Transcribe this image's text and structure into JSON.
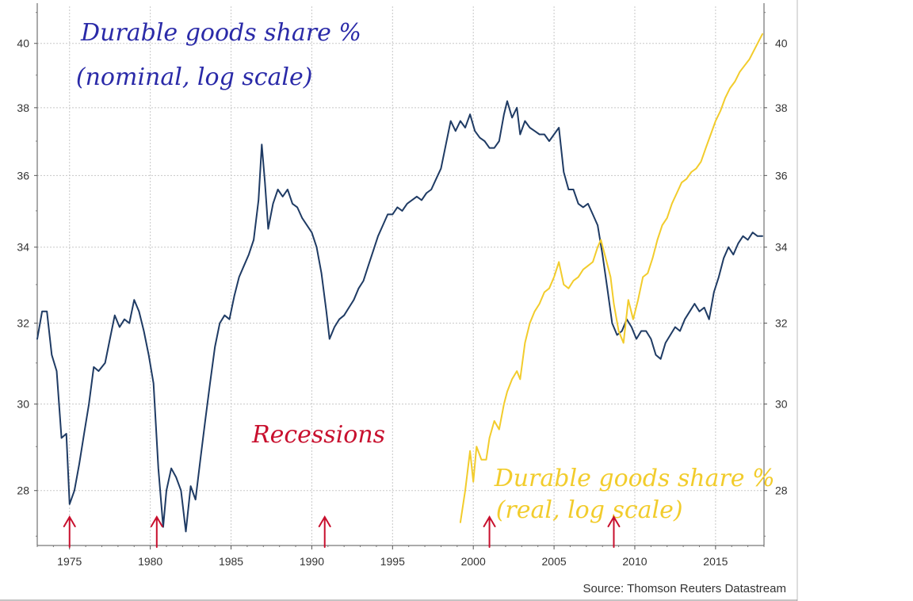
{
  "chart_data": {
    "type": "line",
    "title": "",
    "xlabel": "",
    "ylabel": "",
    "scale": "log",
    "grid": true,
    "legend": "none",
    "xlim": [
      1973,
      2018
    ],
    "ylim": [
      26.8,
      41.2
    ],
    "x_ticks": [
      1975,
      1980,
      1985,
      1990,
      1995,
      2000,
      2005,
      2010,
      2015
    ],
    "x_tick_labels": [
      "1975",
      "1980",
      "1985",
      "1990",
      "1995",
      "2000",
      "2005",
      "2010",
      "2015"
    ],
    "y_ticks": [
      28,
      30,
      32,
      34,
      36,
      38,
      40
    ],
    "y_tick_labels": [
      "28",
      "30",
      "32",
      "34",
      "36",
      "38",
      "40"
    ],
    "source": "Source: Thomson Reuters Datastream",
    "series": [
      {
        "color": "#1f3b64",
        "points": [
          [
            1973.0,
            31.6
          ],
          [
            1973.3,
            32.3
          ],
          [
            1973.6,
            32.3
          ],
          [
            1973.9,
            31.2
          ],
          [
            1974.2,
            30.8
          ],
          [
            1974.5,
            29.2
          ],
          [
            1974.8,
            29.3
          ],
          [
            1975.0,
            27.7
          ],
          [
            1975.3,
            28.0
          ],
          [
            1975.6,
            28.6
          ],
          [
            1975.9,
            29.3
          ],
          [
            1976.2,
            30.0
          ],
          [
            1976.5,
            30.9
          ],
          [
            1976.8,
            30.8
          ],
          [
            1977.2,
            31.0
          ],
          [
            1977.5,
            31.6
          ],
          [
            1977.8,
            32.2
          ],
          [
            1978.1,
            31.9
          ],
          [
            1978.4,
            32.1
          ],
          [
            1978.7,
            32.0
          ],
          [
            1979.0,
            32.6
          ],
          [
            1979.3,
            32.3
          ],
          [
            1979.6,
            31.8
          ],
          [
            1979.9,
            31.2
          ],
          [
            1980.2,
            30.5
          ],
          [
            1980.5,
            28.5
          ],
          [
            1980.8,
            27.2
          ],
          [
            1981.0,
            28.0
          ],
          [
            1981.3,
            28.5
          ],
          [
            1981.6,
            28.3
          ],
          [
            1981.9,
            28.0
          ],
          [
            1982.2,
            27.1
          ],
          [
            1982.5,
            28.1
          ],
          [
            1982.8,
            27.8
          ],
          [
            1983.1,
            28.7
          ],
          [
            1983.4,
            29.6
          ],
          [
            1983.7,
            30.5
          ],
          [
            1984.0,
            31.4
          ],
          [
            1984.3,
            32.0
          ],
          [
            1984.6,
            32.2
          ],
          [
            1984.9,
            32.1
          ],
          [
            1985.2,
            32.7
          ],
          [
            1985.5,
            33.2
          ],
          [
            1985.8,
            33.5
          ],
          [
            1986.1,
            33.8
          ],
          [
            1986.4,
            34.2
          ],
          [
            1986.7,
            35.3
          ],
          [
            1986.9,
            36.9
          ],
          [
            1987.1,
            35.8
          ],
          [
            1987.3,
            34.5
          ],
          [
            1987.6,
            35.2
          ],
          [
            1987.9,
            35.6
          ],
          [
            1988.2,
            35.4
          ],
          [
            1988.5,
            35.6
          ],
          [
            1988.8,
            35.2
          ],
          [
            1989.1,
            35.1
          ],
          [
            1989.4,
            34.8
          ],
          [
            1989.7,
            34.6
          ],
          [
            1990.0,
            34.4
          ],
          [
            1990.3,
            34.0
          ],
          [
            1990.6,
            33.3
          ],
          [
            1990.9,
            32.3
          ],
          [
            1991.1,
            31.6
          ],
          [
            1991.4,
            31.9
          ],
          [
            1991.7,
            32.1
          ],
          [
            1992.0,
            32.2
          ],
          [
            1992.3,
            32.4
          ],
          [
            1992.6,
            32.6
          ],
          [
            1992.9,
            32.9
          ],
          [
            1993.2,
            33.1
          ],
          [
            1993.5,
            33.5
          ],
          [
            1993.8,
            33.9
          ],
          [
            1994.1,
            34.3
          ],
          [
            1994.4,
            34.6
          ],
          [
            1994.7,
            34.9
          ],
          [
            1995.0,
            34.9
          ],
          [
            1995.3,
            35.1
          ],
          [
            1995.6,
            35.0
          ],
          [
            1995.9,
            35.2
          ],
          [
            1996.2,
            35.3
          ],
          [
            1996.5,
            35.4
          ],
          [
            1996.8,
            35.3
          ],
          [
            1997.1,
            35.5
          ],
          [
            1997.4,
            35.6
          ],
          [
            1997.7,
            35.9
          ],
          [
            1998.0,
            36.2
          ],
          [
            1998.3,
            36.9
          ],
          [
            1998.6,
            37.6
          ],
          [
            1998.9,
            37.3
          ],
          [
            1999.2,
            37.6
          ],
          [
            1999.5,
            37.4
          ],
          [
            1999.8,
            37.8
          ],
          [
            2000.1,
            37.3
          ],
          [
            2000.4,
            37.1
          ],
          [
            2000.7,
            37.0
          ],
          [
            2001.0,
            36.8
          ],
          [
            2001.3,
            36.8
          ],
          [
            2001.6,
            37.0
          ],
          [
            2001.9,
            37.8
          ],
          [
            2002.1,
            38.2
          ],
          [
            2002.4,
            37.7
          ],
          [
            2002.7,
            38.0
          ],
          [
            2002.9,
            37.2
          ],
          [
            2003.2,
            37.6
          ],
          [
            2003.5,
            37.4
          ],
          [
            2003.8,
            37.3
          ],
          [
            2004.1,
            37.2
          ],
          [
            2004.4,
            37.2
          ],
          [
            2004.7,
            37.0
          ],
          [
            2005.0,
            37.2
          ],
          [
            2005.3,
            37.4
          ],
          [
            2005.6,
            36.1
          ],
          [
            2005.9,
            35.6
          ],
          [
            2006.2,
            35.6
          ],
          [
            2006.5,
            35.2
          ],
          [
            2006.8,
            35.1
          ],
          [
            2007.1,
            35.2
          ],
          [
            2007.4,
            34.9
          ],
          [
            2007.7,
            34.6
          ],
          [
            2008.0,
            33.8
          ],
          [
            2008.3,
            32.9
          ],
          [
            2008.6,
            32.0
          ],
          [
            2008.9,
            31.7
          ],
          [
            2009.2,
            31.8
          ],
          [
            2009.5,
            32.1
          ],
          [
            2009.8,
            31.9
          ],
          [
            2010.1,
            31.6
          ],
          [
            2010.4,
            31.8
          ],
          [
            2010.7,
            31.8
          ],
          [
            2011.0,
            31.6
          ],
          [
            2011.3,
            31.2
          ],
          [
            2011.6,
            31.1
          ],
          [
            2011.9,
            31.5
          ],
          [
            2012.2,
            31.7
          ],
          [
            2012.5,
            31.9
          ],
          [
            2012.8,
            31.8
          ],
          [
            2013.1,
            32.1
          ],
          [
            2013.4,
            32.3
          ],
          [
            2013.7,
            32.5
          ],
          [
            2014.0,
            32.3
          ],
          [
            2014.3,
            32.4
          ],
          [
            2014.6,
            32.1
          ],
          [
            2014.9,
            32.8
          ],
          [
            2015.2,
            33.2
          ],
          [
            2015.5,
            33.7
          ],
          [
            2015.8,
            34.0
          ],
          [
            2016.1,
            33.8
          ],
          [
            2016.4,
            34.1
          ],
          [
            2016.7,
            34.3
          ],
          [
            2017.0,
            34.2
          ],
          [
            2017.3,
            34.4
          ],
          [
            2017.6,
            34.3
          ],
          [
            2017.9,
            34.3
          ]
        ]
      },
      {
        "color": "#f2cc2c",
        "points": [
          [
            1999.2,
            27.3
          ],
          [
            1999.5,
            28.0
          ],
          [
            1999.8,
            28.9
          ],
          [
            2000.0,
            28.2
          ],
          [
            2000.2,
            29.0
          ],
          [
            2000.5,
            28.7
          ],
          [
            2000.8,
            28.7
          ],
          [
            2001.0,
            29.2
          ],
          [
            2001.3,
            29.6
          ],
          [
            2001.6,
            29.4
          ],
          [
            2001.9,
            30.0
          ],
          [
            2002.1,
            30.3
          ],
          [
            2002.4,
            30.6
          ],
          [
            2002.7,
            30.8
          ],
          [
            2002.9,
            30.6
          ],
          [
            2003.2,
            31.5
          ],
          [
            2003.5,
            32.0
          ],
          [
            2003.8,
            32.3
          ],
          [
            2004.1,
            32.5
          ],
          [
            2004.4,
            32.8
          ],
          [
            2004.7,
            32.9
          ],
          [
            2005.0,
            33.2
          ],
          [
            2005.3,
            33.6
          ],
          [
            2005.6,
            33.0
          ],
          [
            2005.9,
            32.9
          ],
          [
            2006.2,
            33.1
          ],
          [
            2006.5,
            33.2
          ],
          [
            2006.8,
            33.4
          ],
          [
            2007.1,
            33.5
          ],
          [
            2007.4,
            33.6
          ],
          [
            2007.7,
            34.0
          ],
          [
            2007.9,
            34.2
          ],
          [
            2008.2,
            33.7
          ],
          [
            2008.5,
            33.2
          ],
          [
            2008.7,
            32.5
          ],
          [
            2009.0,
            31.8
          ],
          [
            2009.3,
            31.5
          ],
          [
            2009.6,
            32.6
          ],
          [
            2009.9,
            32.1
          ],
          [
            2010.2,
            32.6
          ],
          [
            2010.5,
            33.2
          ],
          [
            2010.8,
            33.3
          ],
          [
            2011.1,
            33.7
          ],
          [
            2011.4,
            34.2
          ],
          [
            2011.7,
            34.6
          ],
          [
            2012.0,
            34.8
          ],
          [
            2012.3,
            35.2
          ],
          [
            2012.6,
            35.5
          ],
          [
            2012.9,
            35.8
          ],
          [
            2013.2,
            35.9
          ],
          [
            2013.5,
            36.1
          ],
          [
            2013.8,
            36.2
          ],
          [
            2014.1,
            36.4
          ],
          [
            2014.4,
            36.8
          ],
          [
            2014.7,
            37.2
          ],
          [
            2015.0,
            37.6
          ],
          [
            2015.3,
            37.9
          ],
          [
            2015.6,
            38.3
          ],
          [
            2015.9,
            38.6
          ],
          [
            2016.2,
            38.8
          ],
          [
            2016.5,
            39.1
          ],
          [
            2016.8,
            39.3
          ],
          [
            2017.1,
            39.5
          ],
          [
            2017.4,
            39.8
          ],
          [
            2017.7,
            40.1
          ],
          [
            2017.9,
            40.3
          ]
        ]
      }
    ],
    "annotations": [
      {
        "text": "Durable goods share %",
        "color": "#2a2aa8",
        "x": 1975.7,
        "y": 40.1,
        "size": 30
      },
      {
        "text": "(nominal, log scale)",
        "color": "#2a2aa8",
        "x": 1975.4,
        "y": 38.7,
        "size": 30
      },
      {
        "text": "Recessions",
        "color": "#c8102e",
        "x": 1986.3,
        "y": 29.1,
        "size": 30
      },
      {
        "text": "Durable goods share %",
        "color": "#f2cc2c",
        "x": 2001.3,
        "y": 28.1,
        "size": 30
      },
      {
        "text": "(real, log scale)",
        "color": "#f2cc2c",
        "x": 2001.4,
        "y": 27.4,
        "size": 30
      }
    ],
    "recession_arrows": [
      1975.0,
      1980.4,
      1990.8,
      2001.0,
      2008.7
    ]
  }
}
